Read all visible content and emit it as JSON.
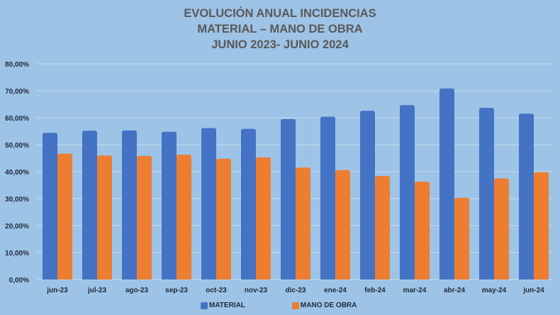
{
  "chart_data": {
    "type": "bar",
    "title": [
      "EVOLUCIÓN ANUAL INCIDENCIAS",
      "MATERIAL – MANO DE OBRA",
      "JUNIO 2023- JUNIO 2024"
    ],
    "xlabel": "",
    "ylabel": "",
    "ylim": [
      0,
      80
    ],
    "y_ticks": [
      "0,00%",
      "10,00%",
      "20,00%",
      "30,00%",
      "40,00%",
      "50,00%",
      "60,00%",
      "70,00%",
      "80,00%"
    ],
    "y_tick_values": [
      0,
      10,
      20,
      30,
      40,
      50,
      60,
      70,
      80
    ],
    "grid": true,
    "legend_position": "bottom",
    "categories": [
      "jun-23",
      "jul-23",
      "ago-23",
      "sep-23",
      "oct-23",
      "nov-23",
      "dic-23",
      "ene-24",
      "feb-24",
      "mar-24",
      "abr-24",
      "may-24",
      "jun-24"
    ],
    "series": [
      {
        "name": "MATERIAL",
        "color": "#4472c4",
        "values": [
          54.4,
          55.2,
          55.3,
          54.8,
          56.2,
          55.9,
          59.5,
          60.4,
          62.6,
          64.7,
          70.9,
          63.7,
          61.5
        ]
      },
      {
        "name": "MANO DE OBRA",
        "color": "#ed7d31",
        "values": [
          46.7,
          46.0,
          45.9,
          46.3,
          44.8,
          45.3,
          41.5,
          40.6,
          38.4,
          36.3,
          30.3,
          37.5,
          39.8
        ]
      }
    ]
  },
  "colors": {
    "background": "#9dc3e6",
    "gridline": "#c9dcef",
    "title_text": "#595959"
  }
}
